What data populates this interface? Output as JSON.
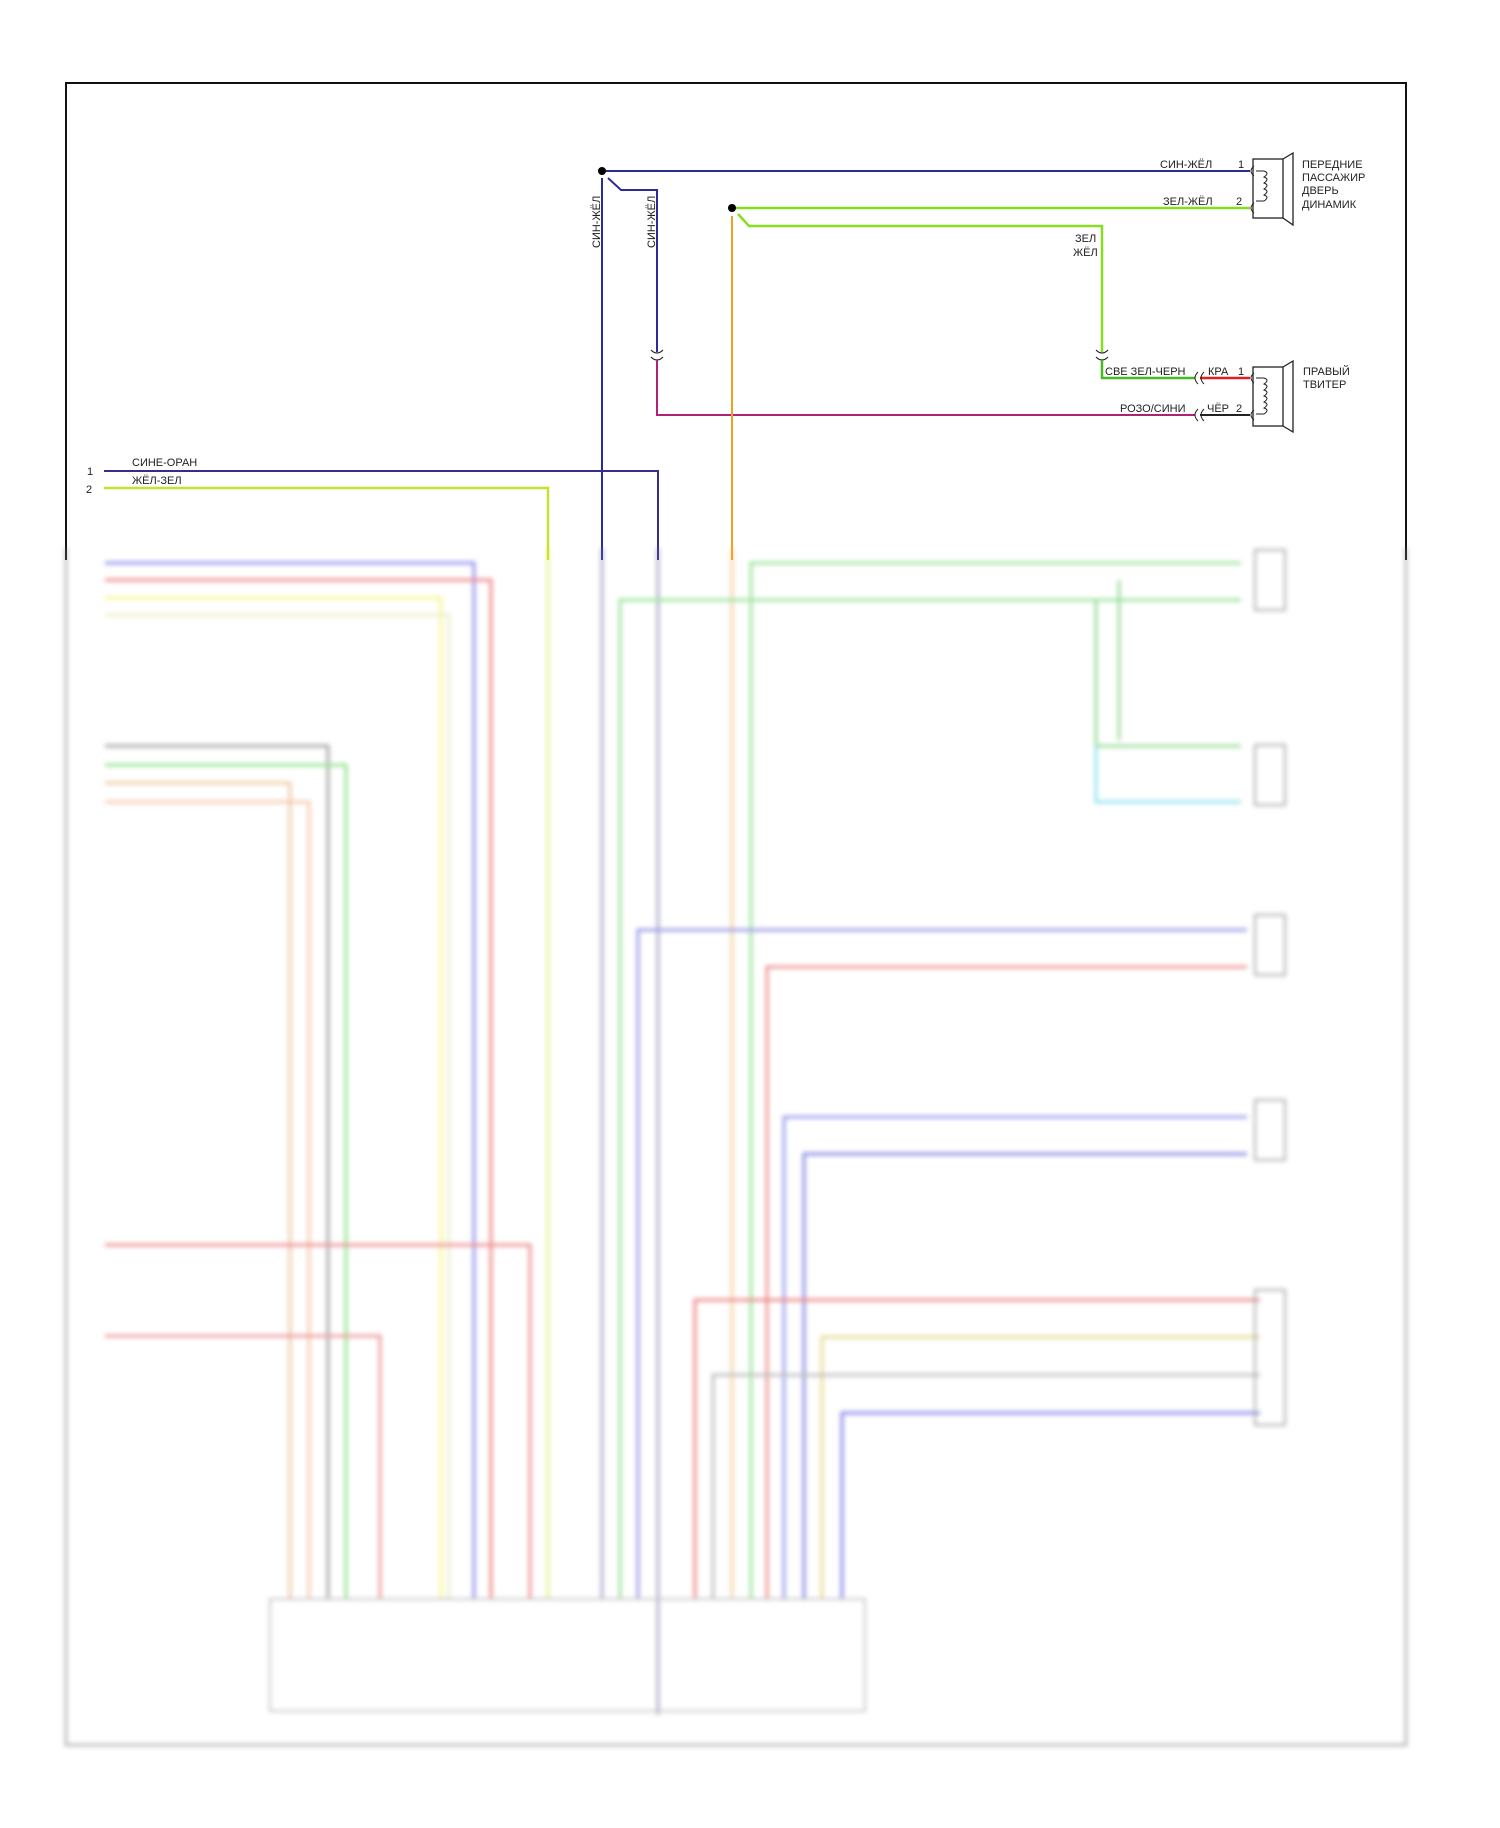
{
  "wire_colors": {
    "blue": "#2b2b9a",
    "green": "#66dd22",
    "yellowgreen": "#bbe02a",
    "magenta": "#b0207a",
    "orange": "#f0a020",
    "red": "#e02020",
    "black": "#222222"
  },
  "front_speaker": {
    "name_lines": [
      "ПЕРЕДНИЕ",
      "ПАССАЖИР",
      "ДВЕРЬ",
      "ДИНАМИК"
    ],
    "pin1": "1",
    "pin2": "2",
    "wire1": "СИН-ЖЁЛ",
    "wire2": "ЗЕЛ-ЖЁЛ"
  },
  "tweeter": {
    "name_lines": [
      "ПРАВЫЙ",
      "ТВИТЕР"
    ],
    "pin1": "1",
    "pin2": "2",
    "pin1_wire": "КРА",
    "pin2_wire": "ЧЁР",
    "wire1": "СВЕ ЗЕЛ-ЧЕРН",
    "wire2": "РОЗО/СИНИ"
  },
  "vertical_labels": [
    "СИН-ЖЁЛ",
    "СИН-ЖЁЛ"
  ],
  "green_branch_label": [
    "ЗЕЛ",
    "ЖЁЛ"
  ],
  "left_connector": {
    "pins": [
      {
        "num": "1",
        "wire": "СИНЕ-ОРАН"
      },
      {
        "num": "2",
        "wire": "ЖЁЛ-ЗЕЛ"
      }
    ]
  }
}
